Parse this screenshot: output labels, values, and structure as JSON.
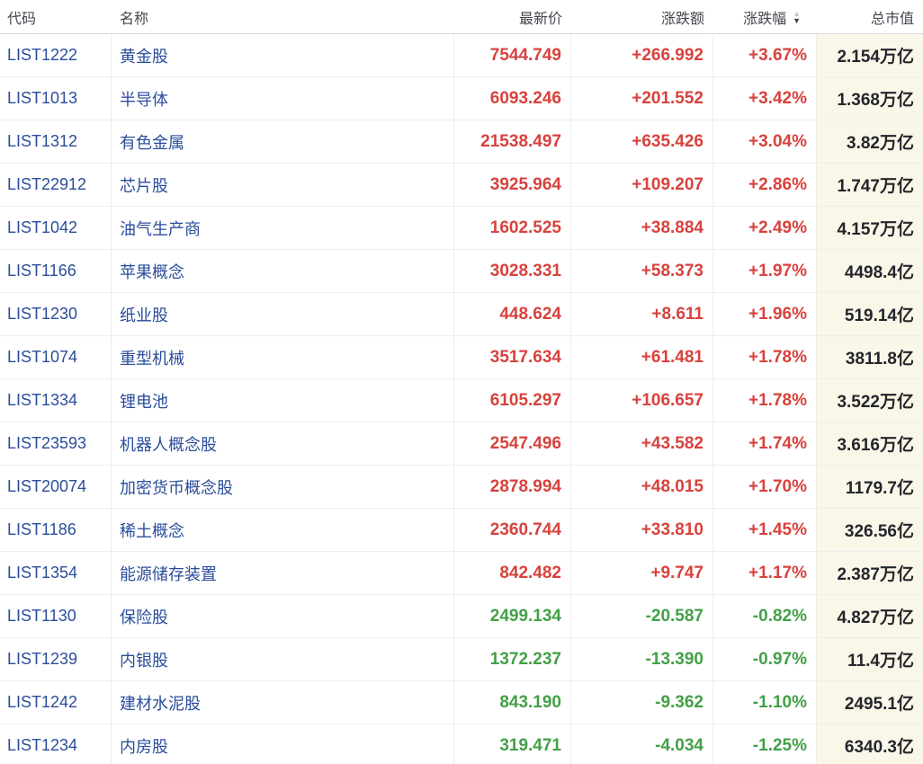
{
  "table": {
    "columns": [
      {
        "key": "code",
        "label": "代码"
      },
      {
        "key": "name",
        "label": "名称"
      },
      {
        "key": "price",
        "label": "最新价"
      },
      {
        "key": "change",
        "label": "涨跌额"
      },
      {
        "key": "change_pct",
        "label": "涨跌幅"
      },
      {
        "key": "market_cap",
        "label": "总市值"
      }
    ],
    "sort": {
      "column": "涨跌幅",
      "direction": "desc"
    },
    "rows": [
      {
        "code": "LIST1222",
        "name": "黄金股",
        "price": "7544.749",
        "change": "+266.992",
        "change_pct": "+3.67%",
        "market_cap": "2.154万亿"
      },
      {
        "code": "LIST1013",
        "name": "半导体",
        "price": "6093.246",
        "change": "+201.552",
        "change_pct": "+3.42%",
        "market_cap": "1.368万亿"
      },
      {
        "code": "LIST1312",
        "name": "有色金属",
        "price": "21538.497",
        "change": "+635.426",
        "change_pct": "+3.04%",
        "market_cap": "3.82万亿"
      },
      {
        "code": "LIST22912",
        "name": "芯片股",
        "price": "3925.964",
        "change": "+109.207",
        "change_pct": "+2.86%",
        "market_cap": "1.747万亿"
      },
      {
        "code": "LIST1042",
        "name": "油气生产商",
        "price": "1602.525",
        "change": "+38.884",
        "change_pct": "+2.49%",
        "market_cap": "4.157万亿"
      },
      {
        "code": "LIST1166",
        "name": "苹果概念",
        "price": "3028.331",
        "change": "+58.373",
        "change_pct": "+1.97%",
        "market_cap": "4498.4亿"
      },
      {
        "code": "LIST1230",
        "name": "纸业股",
        "price": "448.624",
        "change": "+8.611",
        "change_pct": "+1.96%",
        "market_cap": "519.14亿"
      },
      {
        "code": "LIST1074",
        "name": "重型机械",
        "price": "3517.634",
        "change": "+61.481",
        "change_pct": "+1.78%",
        "market_cap": "3811.8亿"
      },
      {
        "code": "LIST1334",
        "name": "锂电池",
        "price": "6105.297",
        "change": "+106.657",
        "change_pct": "+1.78%",
        "market_cap": "3.522万亿"
      },
      {
        "code": "LIST23593",
        "name": "机器人概念股",
        "price": "2547.496",
        "change": "+43.582",
        "change_pct": "+1.74%",
        "market_cap": "3.616万亿"
      },
      {
        "code": "LIST20074",
        "name": "加密货币概念股",
        "price": "2878.994",
        "change": "+48.015",
        "change_pct": "+1.70%",
        "market_cap": "1179.7亿"
      },
      {
        "code": "LIST1186",
        "name": "稀土概念",
        "price": "2360.744",
        "change": "+33.810",
        "change_pct": "+1.45%",
        "market_cap": "326.56亿"
      },
      {
        "code": "LIST1354",
        "name": "能源储存装置",
        "price": "842.482",
        "change": "+9.747",
        "change_pct": "+1.17%",
        "market_cap": "2.387万亿"
      },
      {
        "code": "LIST1130",
        "name": "保险股",
        "price": "2499.134",
        "change": "-20.587",
        "change_pct": "-0.82%",
        "market_cap": "4.827万亿"
      },
      {
        "code": "LIST1239",
        "name": "内银股",
        "price": "1372.237",
        "change": "-13.390",
        "change_pct": "-0.97%",
        "market_cap": "11.4万亿"
      },
      {
        "code": "LIST1242",
        "name": "建材水泥股",
        "price": "843.190",
        "change": "-9.362",
        "change_pct": "-1.10%",
        "market_cap": "2495.1亿"
      },
      {
        "code": "LIST1234",
        "name": "内房股",
        "price": "319.471",
        "change": "-4.034",
        "change_pct": "-1.25%",
        "market_cap": "6340.3亿"
      }
    ]
  },
  "icons": {
    "sort_asc": "▲",
    "sort_desc": "▼"
  },
  "colors": {
    "up": "#d8423d",
    "down": "#43a047",
    "link_blue": "#2a4d9b",
    "market_cap_bg": "#faf7e8",
    "market_cap_text": "#24252c"
  }
}
